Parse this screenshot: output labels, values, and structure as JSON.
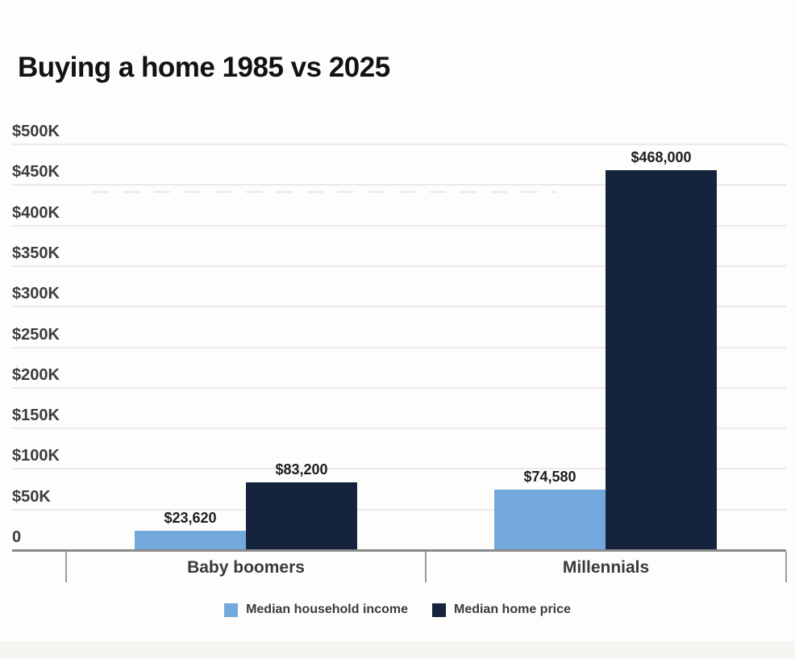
{
  "title": "Buying a home 1985 vs 2025",
  "chart_data": {
    "type": "bar",
    "title": "Buying a home 1985 vs 2025",
    "categories": [
      "Baby boomers",
      "Millennials"
    ],
    "series": [
      {
        "name": "Median household income",
        "color": "#72a8db",
        "values": [
          23620,
          74580
        ],
        "data_labels": [
          "$23,620",
          "$74,580"
        ]
      },
      {
        "name": "Median home price",
        "color": "#16233c",
        "values": [
          83200,
          468000
        ],
        "data_labels": [
          "$83,200",
          "$468,000"
        ]
      }
    ],
    "xlabel": "",
    "ylabel": "",
    "ylim": [
      0,
      500000
    ],
    "y_axis": {
      "zero_label": "0",
      "ticks": [
        {
          "label": "$500K",
          "value": 500000
        },
        {
          "label": "$450K",
          "value": 450000
        },
        {
          "label": "$400K",
          "value": 400000
        },
        {
          "label": "$350K",
          "value": 350000
        },
        {
          "label": "$300K",
          "value": 300000
        },
        {
          "label": "$250K",
          "value": 250000
        },
        {
          "label": "$200K",
          "value": 200000
        },
        {
          "label": "$150K",
          "value": 150000
        },
        {
          "label": "$100K",
          "value": 100000
        },
        {
          "label": "$50K",
          "value": 50000
        },
        {
          "label": "0",
          "value": 0
        }
      ]
    },
    "grid": "horizontal",
    "legend_position": "bottom"
  },
  "colors": {
    "income_blue": "#72a8db",
    "home_navy": "#16233c",
    "gridline": "#eceae8",
    "axis": "#8a8a8a",
    "text_dark": "#121212",
    "text_label": "#3d3d3d"
  }
}
